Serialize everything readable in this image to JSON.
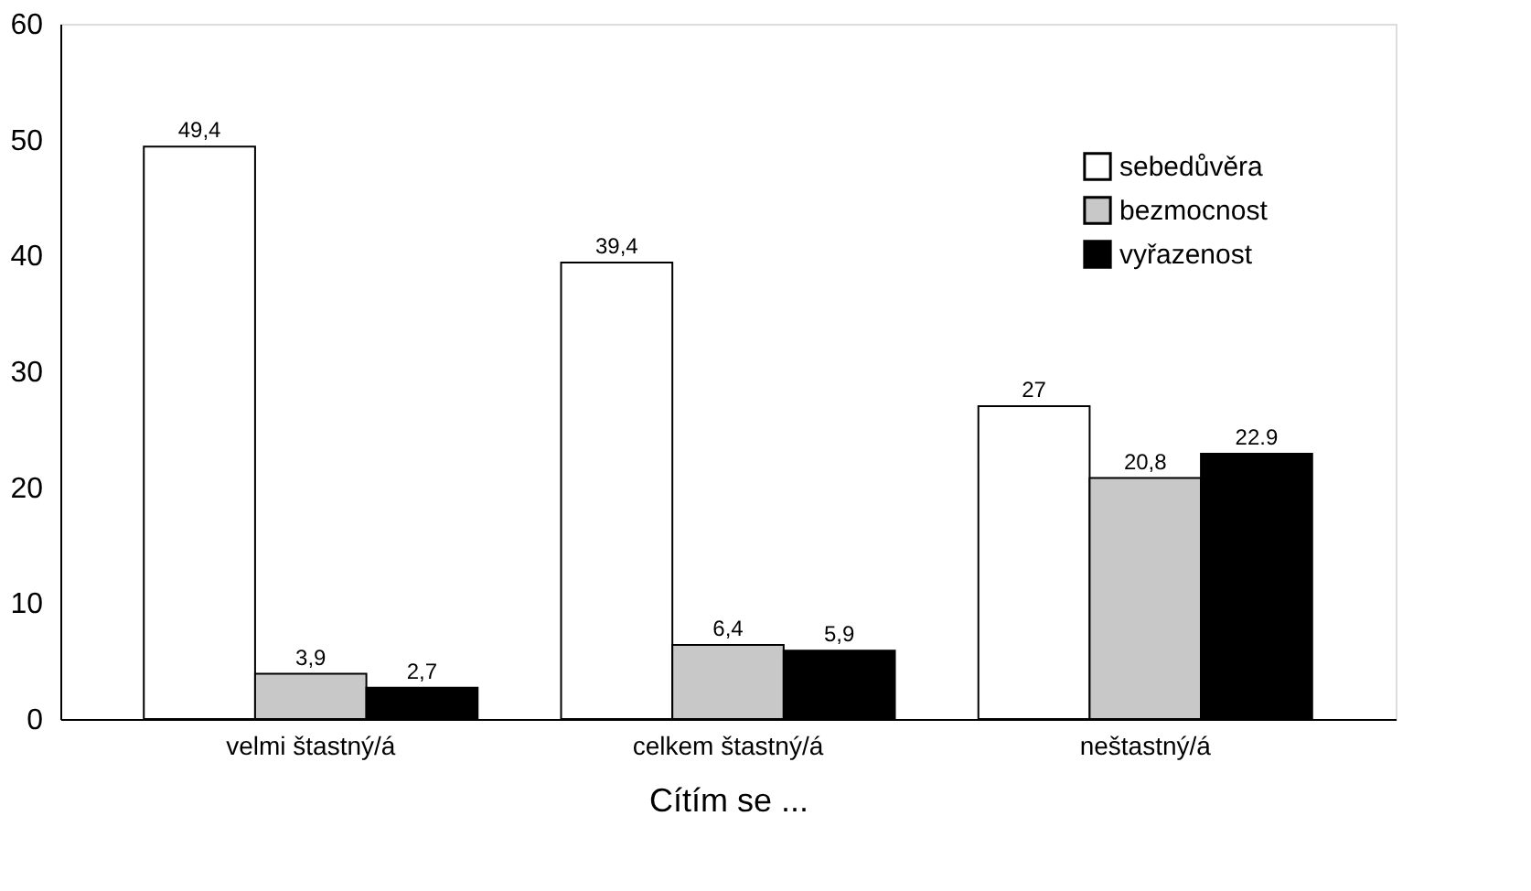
{
  "chart_data": {
    "type": "bar",
    "xlabel": "Cítím se ...",
    "categories": [
      "velmi štastný/á",
      "celkem štastný/á",
      "neštastný/á"
    ],
    "series": [
      {
        "name": "sebedůvěra",
        "color": "#ffffff",
        "values": [
          49.4,
          39.4,
          27
        ],
        "value_labels": [
          "49,4",
          "39,4",
          "27"
        ]
      },
      {
        "name": "bezmocnost",
        "color": "#c8c8c8",
        "values": [
          3.9,
          6.4,
          20.8
        ],
        "value_labels": [
          "3,9",
          "6,4",
          "20,8"
        ]
      },
      {
        "name": "vyřazenost",
        "color": "#000000",
        "values": [
          2.7,
          5.9,
          22.9
        ],
        "value_labels": [
          "2,7",
          "5,9",
          "22.9"
        ]
      }
    ],
    "ylim": [
      0,
      60
    ],
    "yticks": [
      0,
      10,
      20,
      30,
      40,
      50,
      60
    ],
    "grid": false,
    "legend": "top right"
  }
}
